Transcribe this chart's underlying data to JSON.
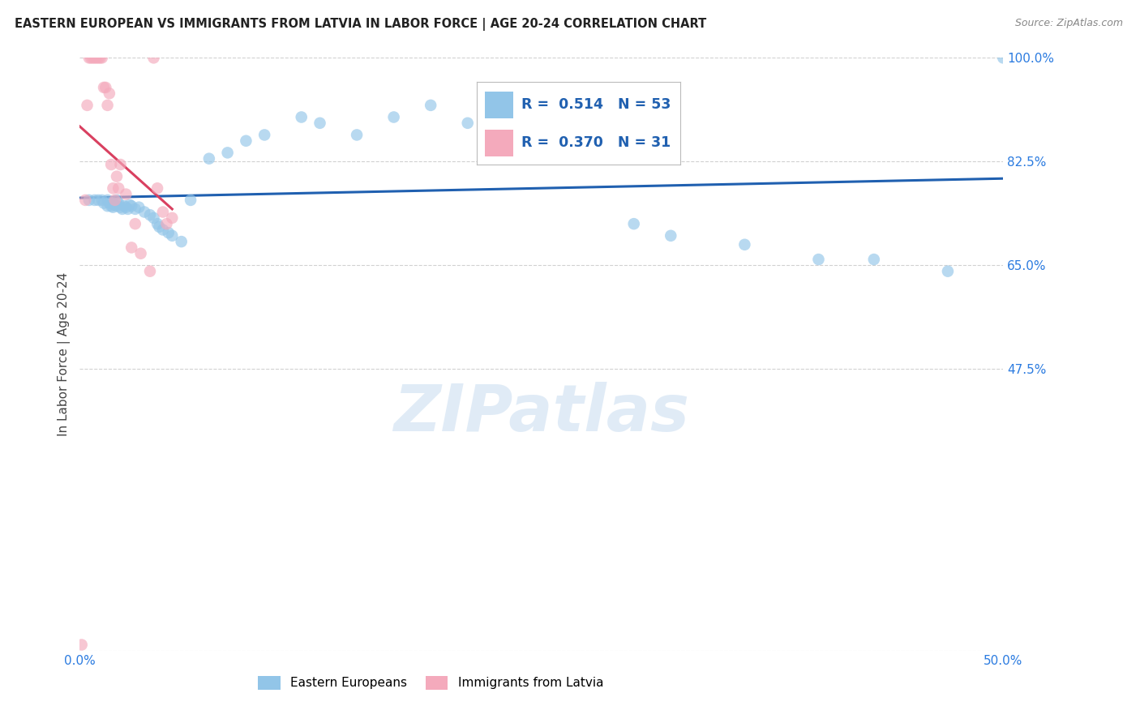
{
  "title": "EASTERN EUROPEAN VS IMMIGRANTS FROM LATVIA IN LABOR FORCE | AGE 20-24 CORRELATION CHART",
  "source": "Source: ZipAtlas.com",
  "ylabel": "In Labor Force | Age 20-24",
  "xlim": [
    0.0,
    0.5
  ],
  "ylim": [
    0.0,
    1.0
  ],
  "xtick_positions": [
    0.0,
    0.1,
    0.2,
    0.3,
    0.4,
    0.5
  ],
  "xticklabels": [
    "0.0%",
    "",
    "",
    "",
    "",
    "50.0%"
  ],
  "ytick_positions": [
    0.0,
    0.475,
    0.65,
    0.825,
    1.0
  ],
  "yticklabels": [
    "",
    "47.5%",
    "65.0%",
    "82.5%",
    "100.0%"
  ],
  "grid_color": "#cccccc",
  "background_color": "#ffffff",
  "watermark": "ZIPatlas",
  "blue_R": 0.514,
  "blue_N": 53,
  "pink_R": 0.37,
  "pink_N": 31,
  "blue_color": "#92C5E8",
  "pink_color": "#F4AABC",
  "blue_line_color": "#2060B0",
  "pink_line_color": "#D94060",
  "blue_scatter_x": [
    0.005,
    0.008,
    0.01,
    0.012,
    0.013,
    0.015,
    0.015,
    0.016,
    0.017,
    0.018,
    0.018,
    0.019,
    0.02,
    0.02,
    0.021,
    0.022,
    0.023,
    0.024,
    0.025,
    0.026,
    0.027,
    0.028,
    0.03,
    0.032,
    0.035,
    0.038,
    0.04,
    0.042,
    0.043,
    0.045,
    0.048,
    0.05,
    0.055,
    0.06,
    0.07,
    0.08,
    0.09,
    0.1,
    0.12,
    0.13,
    0.15,
    0.17,
    0.19,
    0.21,
    0.23,
    0.27,
    0.3,
    0.32,
    0.36,
    0.4,
    0.43,
    0.47,
    0.5
  ],
  "blue_scatter_y": [
    0.76,
    0.76,
    0.76,
    0.76,
    0.755,
    0.75,
    0.76,
    0.755,
    0.75,
    0.748,
    0.755,
    0.752,
    0.75,
    0.76,
    0.755,
    0.748,
    0.745,
    0.75,
    0.748,
    0.745,
    0.752,
    0.75,
    0.745,
    0.748,
    0.74,
    0.735,
    0.73,
    0.72,
    0.715,
    0.71,
    0.705,
    0.7,
    0.69,
    0.76,
    0.83,
    0.84,
    0.86,
    0.87,
    0.9,
    0.89,
    0.87,
    0.9,
    0.92,
    0.89,
    0.87,
    0.87,
    0.72,
    0.7,
    0.685,
    0.66,
    0.66,
    0.64,
    1.0
  ],
  "pink_scatter_x": [
    0.001,
    0.003,
    0.004,
    0.005,
    0.006,
    0.007,
    0.008,
    0.009,
    0.01,
    0.011,
    0.012,
    0.013,
    0.014,
    0.015,
    0.016,
    0.017,
    0.018,
    0.019,
    0.02,
    0.021,
    0.022,
    0.025,
    0.028,
    0.03,
    0.033,
    0.038,
    0.04,
    0.042,
    0.045,
    0.047,
    0.05
  ],
  "pink_scatter_y": [
    0.01,
    0.76,
    0.92,
    1.0,
    1.0,
    1.0,
    1.0,
    1.0,
    1.0,
    1.0,
    1.0,
    0.95,
    0.95,
    0.92,
    0.94,
    0.82,
    0.78,
    0.76,
    0.8,
    0.78,
    0.82,
    0.77,
    0.68,
    0.72,
    0.67,
    0.64,
    1.0,
    0.78,
    0.74,
    0.72,
    0.73
  ]
}
